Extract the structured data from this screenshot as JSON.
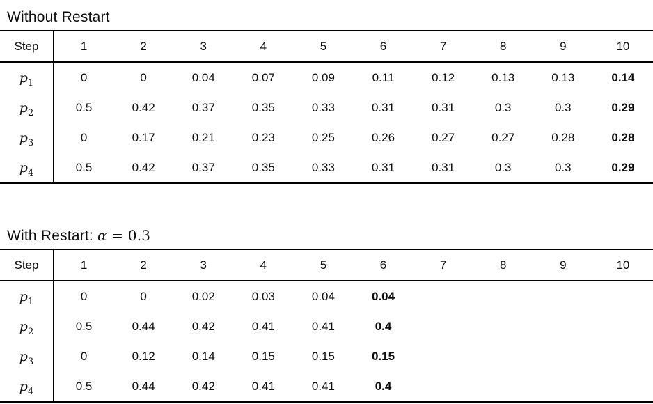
{
  "tables": [
    {
      "id": "without-restart",
      "title": "Without Restart",
      "title_math_alpha": "",
      "title_math_rest": "",
      "step_label": "Step",
      "steps": [
        "1",
        "2",
        "3",
        "4",
        "5",
        "6",
        "7",
        "8",
        "9",
        "10"
      ],
      "rows": [
        {
          "var": "p",
          "sub": "1",
          "bold_index": 9,
          "values": [
            "0",
            "0",
            "0.04",
            "0.07",
            "0.09",
            "0.11",
            "0.12",
            "0.13",
            "0.13",
            "0.14"
          ]
        },
        {
          "var": "p",
          "sub": "2",
          "bold_index": 9,
          "values": [
            "0.5",
            "0.42",
            "0.37",
            "0.35",
            "0.33",
            "0.31",
            "0.31",
            "0.3",
            "0.3",
            "0.29"
          ]
        },
        {
          "var": "p",
          "sub": "3",
          "bold_index": 9,
          "values": [
            "0",
            "0.17",
            "0.21",
            "0.23",
            "0.25",
            "0.26",
            "0.27",
            "0.27",
            "0.28",
            "0.28"
          ]
        },
        {
          "var": "p",
          "sub": "4",
          "bold_index": 9,
          "values": [
            "0.5",
            "0.42",
            "0.37",
            "0.35",
            "0.33",
            "0.31",
            "0.31",
            "0.3",
            "0.3",
            "0.29"
          ]
        }
      ]
    },
    {
      "id": "with-restart",
      "title": "With Restart: ",
      "title_math_alpha": "α",
      "title_math_rest": " = 0.3",
      "step_label": "Step",
      "steps": [
        "1",
        "2",
        "3",
        "4",
        "5",
        "6",
        "7",
        "8",
        "9",
        "10"
      ],
      "rows": [
        {
          "var": "p",
          "sub": "1",
          "bold_index": 5,
          "values": [
            "0",
            "0",
            "0.02",
            "0.03",
            "0.04",
            "0.04",
            "",
            "",
            "",
            ""
          ]
        },
        {
          "var": "p",
          "sub": "2",
          "bold_index": 5,
          "values": [
            "0.5",
            "0.44",
            "0.42",
            "0.41",
            "0.41",
            "0.4",
            "",
            "",
            "",
            ""
          ]
        },
        {
          "var": "p",
          "sub": "3",
          "bold_index": 5,
          "values": [
            "0",
            "0.12",
            "0.14",
            "0.15",
            "0.15",
            "0.15",
            "",
            "",
            "",
            ""
          ]
        },
        {
          "var": "p",
          "sub": "4",
          "bold_index": 5,
          "values": [
            "0.5",
            "0.44",
            "0.42",
            "0.41",
            "0.41",
            "0.4",
            "",
            "",
            "",
            ""
          ]
        }
      ]
    }
  ]
}
